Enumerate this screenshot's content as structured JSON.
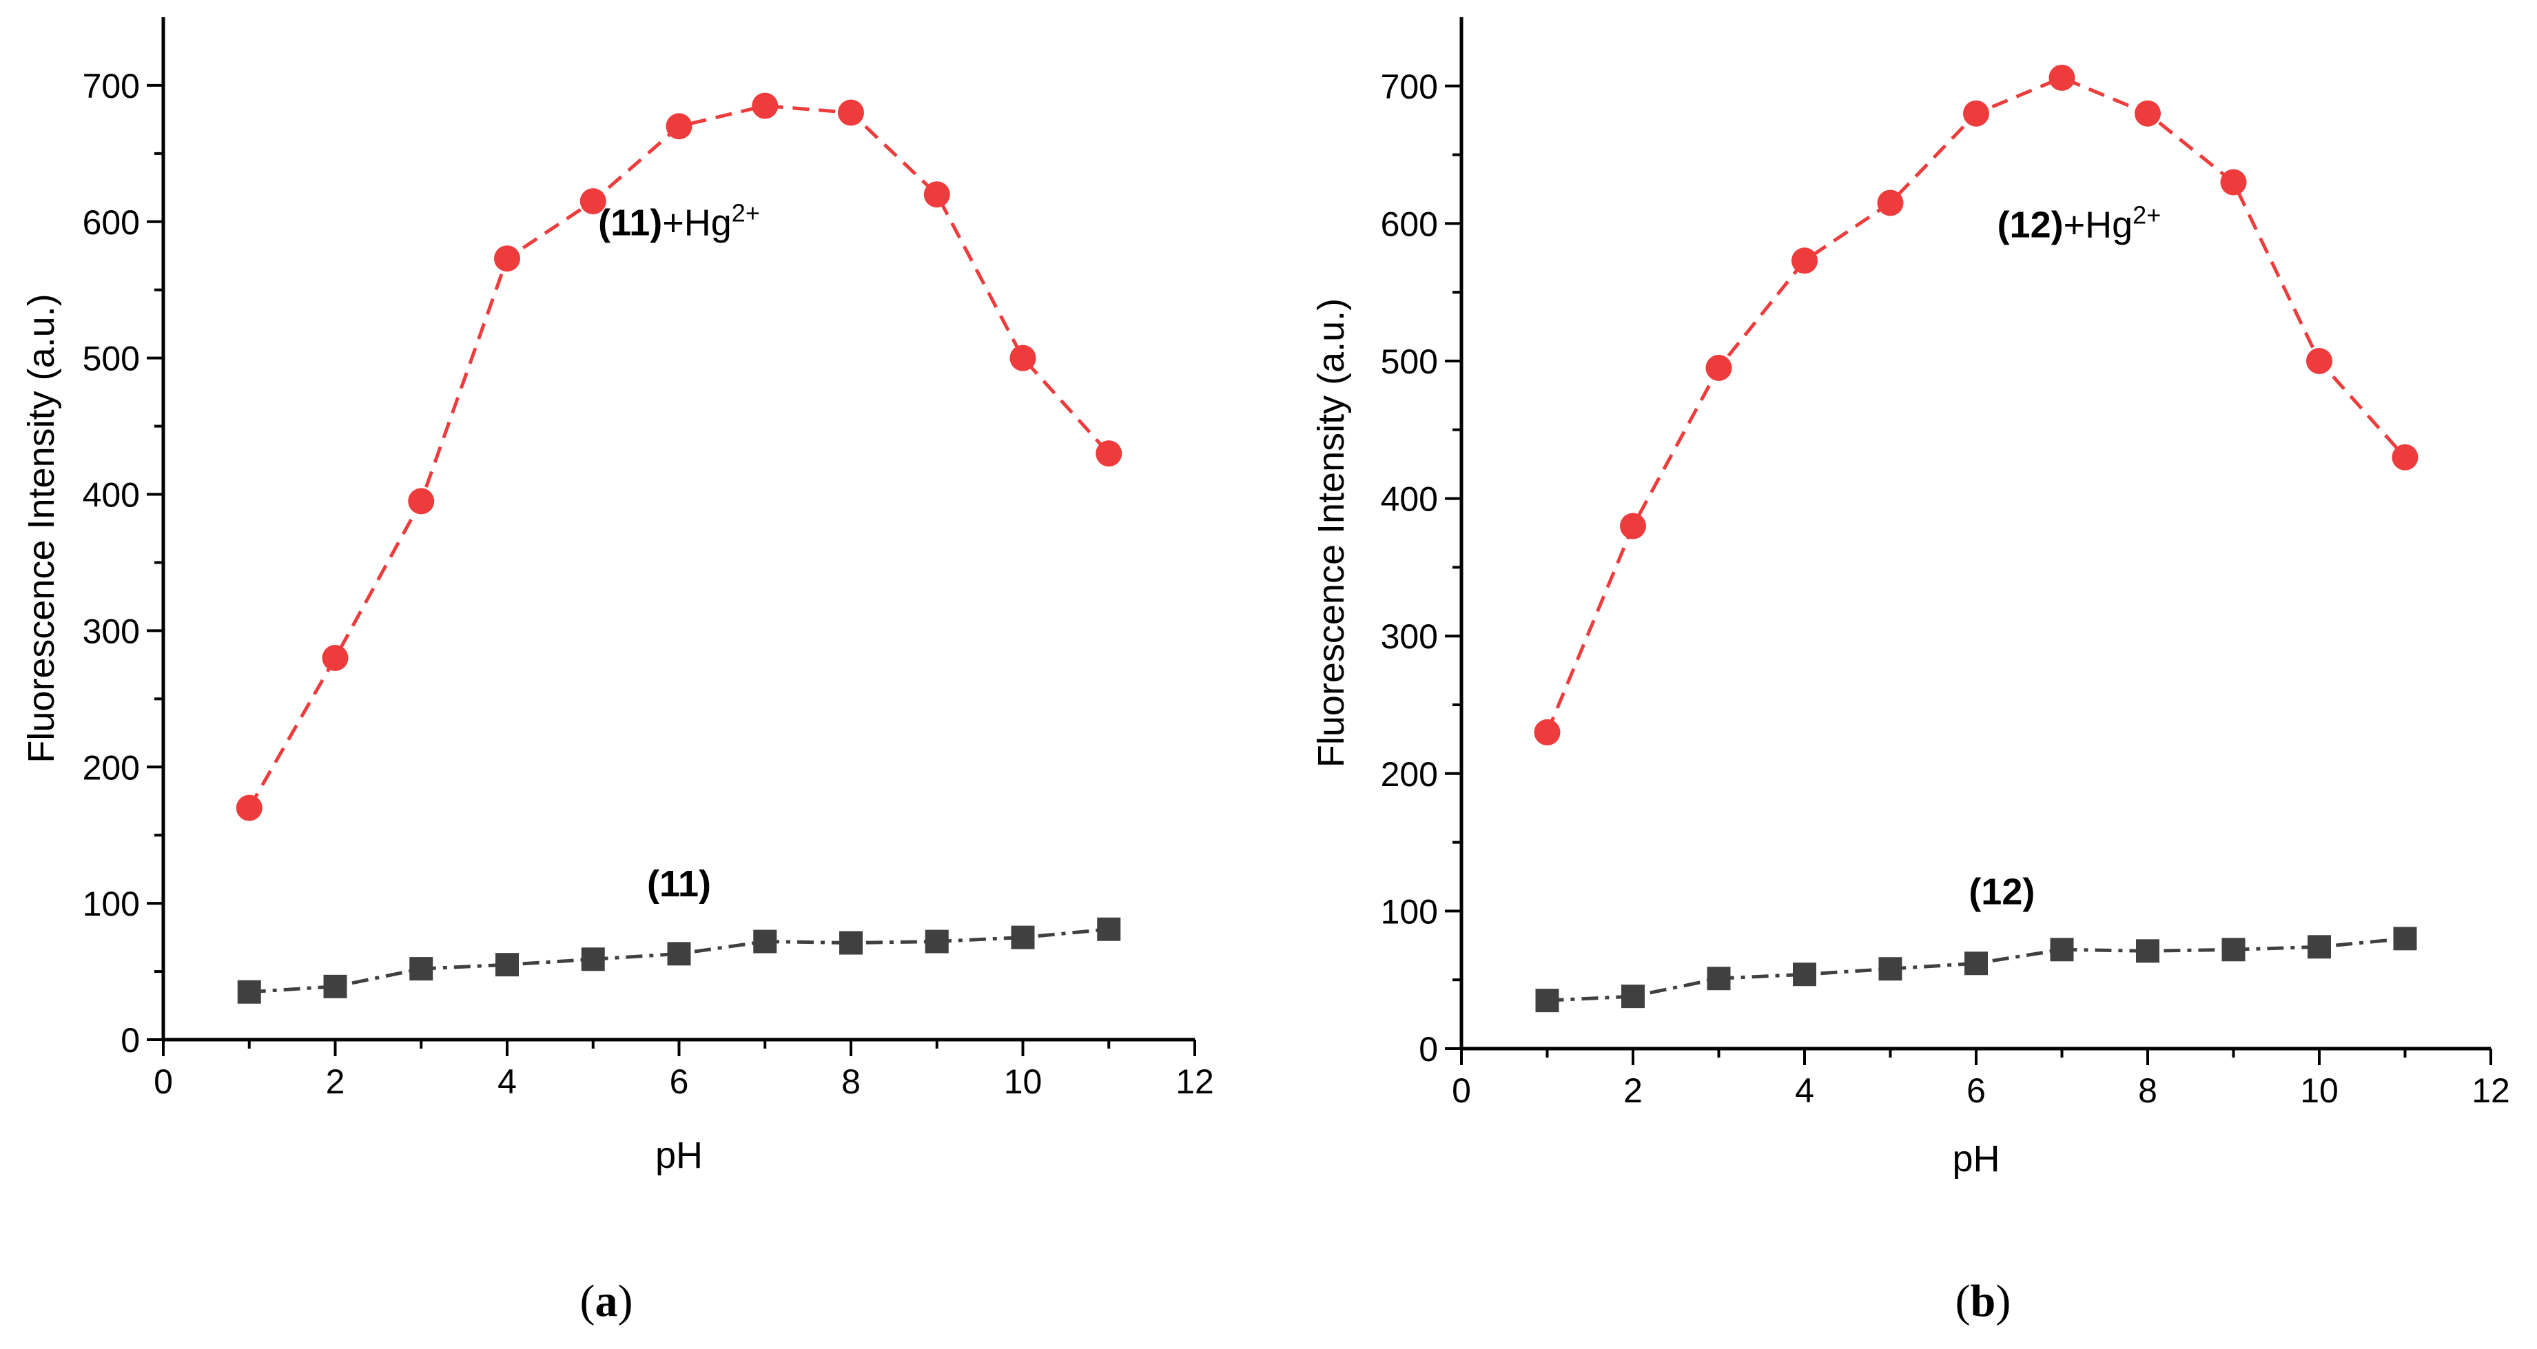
{
  "chart_data": [
    {
      "type": "line",
      "panel_label": {
        "open": "(",
        "letter": "a",
        "close": ")"
      },
      "xlabel": "pH",
      "ylabel": "Fluorescence Intensity (a.u.)",
      "xlim": [
        0,
        12
      ],
      "ylim": [
        0,
        750
      ],
      "xticks": [
        0,
        2,
        4,
        6,
        8,
        10,
        12
      ],
      "yticks": [
        0,
        100,
        200,
        300,
        400,
        500,
        600,
        700
      ],
      "grid": false,
      "series": [
        {
          "name": "(11)+Hg2+",
          "color": "#ee3b3b",
          "marker": "circle",
          "line": "dash",
          "x": [
            1,
            2,
            3,
            4,
            5,
            6,
            7,
            8,
            9,
            10,
            11
          ],
          "y": [
            170,
            280,
            395,
            573,
            615,
            670,
            685,
            680,
            620,
            500,
            430
          ]
        },
        {
          "name": "(11)",
          "color": "#404040",
          "marker": "square",
          "line": "dashdot",
          "x": [
            1,
            2,
            3,
            4,
            5,
            6,
            7,
            8,
            9,
            10,
            11
          ],
          "y": [
            35,
            39,
            52,
            55,
            59,
            63,
            72,
            71,
            72,
            75,
            81
          ]
        }
      ],
      "annotations": [
        {
          "parts": [
            {
              "text": "(11)",
              "bold": true
            },
            {
              "text": "+Hg",
              "bold": false
            },
            {
              "text": "2+",
              "bold": false,
              "sup": true
            }
          ],
          "x": 6.0,
          "y": 590
        },
        {
          "parts": [
            {
              "text": "(11)",
              "bold": true
            }
          ],
          "x": 6.0,
          "y": 105
        }
      ]
    },
    {
      "type": "line",
      "panel_label": {
        "open": "(",
        "letter": "b",
        "close": ")"
      },
      "xlabel": "pH",
      "ylabel": "Fluorescence Intensity (a.u.)",
      "xlim": [
        0,
        12
      ],
      "ylim": [
        0,
        750
      ],
      "xticks": [
        0,
        2,
        4,
        6,
        8,
        10,
        12
      ],
      "yticks": [
        0,
        100,
        200,
        300,
        400,
        500,
        600,
        700
      ],
      "grid": false,
      "series": [
        {
          "name": "(12)+Hg2+",
          "color": "#ee3b3b",
          "marker": "circle",
          "line": "dash",
          "x": [
            1,
            2,
            3,
            4,
            5,
            6,
            7,
            8,
            9,
            10,
            11
          ],
          "y": [
            230,
            380,
            495,
            573,
            615,
            680,
            706,
            680,
            630,
            500,
            430
          ]
        },
        {
          "name": "(12)",
          "color": "#404040",
          "marker": "square",
          "line": "dashdot",
          "x": [
            1,
            2,
            3,
            4,
            5,
            6,
            7,
            8,
            9,
            10,
            11
          ],
          "y": [
            35,
            38,
            51,
            54,
            58,
            62,
            72,
            71,
            72,
            74,
            80
          ]
        }
      ],
      "annotations": [
        {
          "parts": [
            {
              "text": "(12)",
              "bold": true
            },
            {
              "text": "+Hg",
              "bold": false
            },
            {
              "text": "2+",
              "bold": false,
              "sup": true
            }
          ],
          "x": 7.2,
          "y": 590
        },
        {
          "parts": [
            {
              "text": "(12)",
              "bold": true
            }
          ],
          "x": 6.3,
          "y": 105
        }
      ]
    }
  ]
}
